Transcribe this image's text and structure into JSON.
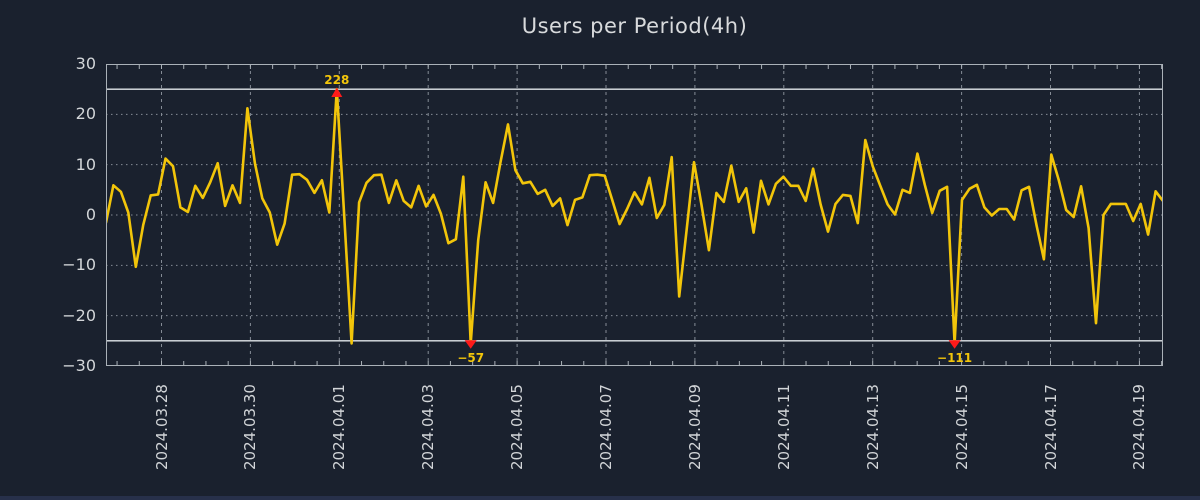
{
  "title": "Users per Period(4h)",
  "colors": {
    "background": "#1a212e",
    "line": "#f2c50a",
    "marker": "#ff1a1a",
    "grid": "#858c96",
    "frame": "#aab1b8",
    "clip_line": "#e2e6ea",
    "text": "#d2d5d8"
  },
  "chart_data": {
    "type": "line",
    "title": "Users per Period(4h)",
    "period": "4h",
    "points_per_day": 6,
    "xlabel": "",
    "ylabel": "",
    "ylim": [
      -30,
      30
    ],
    "y_tick_labels": [
      "30",
      "20",
      "10",
      "0",
      "−10",
      "−20",
      "−30"
    ],
    "y_tick_values": [
      30,
      20,
      10,
      0,
      -10,
      -20,
      -30
    ],
    "x_tick_labels": [
      "2024.03.28",
      "2024.03.30",
      "2024.04.01",
      "2024.04.03",
      "2024.04.05",
      "2024.04.07",
      "2024.04.09",
      "2024.04.11",
      "2024.04.13",
      "2024.04.15",
      "2024.04.17",
      "2024.04.19"
    ],
    "grid": "dotted",
    "clip_lines": [
      25,
      -25
    ],
    "clip_note": "values beyond ±25 are clipped at the solid lines and annotated with their true value",
    "values": [
      -1.5,
      5.9,
      4.6,
      0.5,
      -10.3,
      -2.0,
      3.9,
      4.1,
      11.2,
      9.7,
      1.5,
      0.6,
      5.8,
      3.4,
      6.5,
      10.3,
      1.8,
      5.9,
      2.4,
      21.2,
      10.3,
      3.3,
      0.5,
      -5.9,
      -1.7,
      8.0,
      8.1,
      7.0,
      4.4,
      6.9,
      0.5,
      228,
      -0.1,
      -25.5,
      2.5,
      6.4,
      7.9,
      8.0,
      2.4,
      6.9,
      2.8,
      1.5,
      5.8,
      1.7,
      4.0,
      0.2,
      -5.6,
      -4.8,
      7.6,
      -57,
      -5.0,
      6.5,
      2.4,
      10.5,
      18.0,
      8.9,
      6.3,
      6.6,
      4.2,
      5.0,
      1.8,
      3.3,
      -2.0,
      3.0,
      3.5,
      7.9,
      8.0,
      7.8,
      3.0,
      -1.8,
      1.2,
      4.5,
      2.1,
      7.4,
      -0.6,
      2.0,
      11.5,
      -16.2,
      -3.0,
      10.5,
      2.0,
      -7.0,
      4.4,
      2.6,
      9.8,
      2.6,
      5.3,
      -3.5,
      6.8,
      2.1,
      6.2,
      7.6,
      5.8,
      5.8,
      2.8,
      9.2,
      2.1,
      -3.3,
      2.2,
      4.0,
      3.8,
      -1.6,
      14.9,
      9.7,
      5.9,
      2.1,
      0.1,
      5.0,
      4.4,
      12.2,
      6.0,
      0.4,
      4.8,
      5.6,
      -111,
      3.0,
      5.2,
      6.0,
      1.5,
      -0.1,
      1.2,
      1.2,
      -0.9,
      4.9,
      5.6,
      -2.0,
      -8.8,
      12.0,
      6.9,
      1.0,
      -0.4,
      5.7,
      -2.6,
      -21.5,
      0.0,
      2.2,
      2.2,
      2.2,
      -1.2,
      2.2,
      -3.9,
      4.7,
      2.8
    ],
    "annotations": [
      {
        "label": "228",
        "index": 31,
        "dir": "up"
      },
      {
        "label": "−57",
        "index": 49,
        "dir": "down"
      },
      {
        "label": "−111",
        "index": 114,
        "dir": "down"
      }
    ]
  }
}
